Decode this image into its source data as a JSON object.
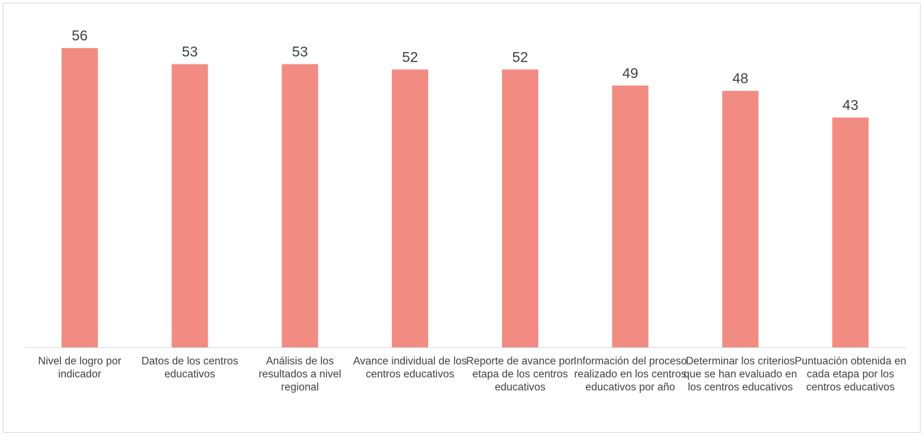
{
  "chart_data": {
    "type": "bar",
    "categories": [
      "Nivel de logro por indicador",
      "Datos de los centros educativos",
      "Análisis de los resultados a nivel regional",
      "Avance individual de los centros educativos",
      "Reporte de avance por etapa de los centros educativos",
      "Información del proceso realizado en los centros educativos por año",
      "Determinar los criterios que se han evaluado en los centros educativos",
      "Puntuación obtenida en cada etapa por los centros educativos"
    ],
    "values": [
      56,
      53,
      53,
      52,
      52,
      49,
      48,
      43
    ],
    "value_labels": [
      "56",
      "53",
      "53",
      "52",
      "52",
      "49",
      "48",
      "43"
    ],
    "ylim": [
      0,
      60
    ],
    "grid": false,
    "legend": "none",
    "bar_color": "#f28b82",
    "axis_color": "#d9d9d9"
  }
}
